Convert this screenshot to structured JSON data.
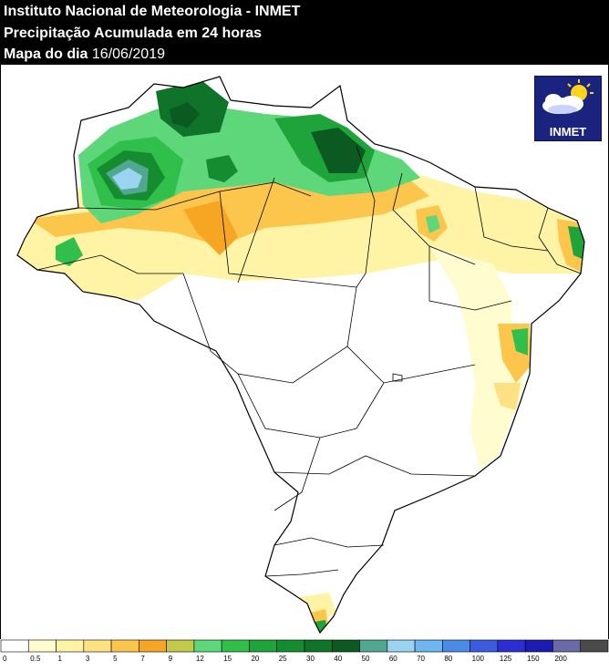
{
  "header": {
    "line1": "Instituto Nacional de Meteorologia - INMET",
    "line2": "Precipitação Acumulada em 24 horas",
    "line3_prefix": "Mapa do dia",
    "line3_date": "16/06/2019"
  },
  "logo": {
    "text": "INMET",
    "icon": "sun-cloud-icon"
  },
  "legend": {
    "classes": [
      {
        "label": "0",
        "color": "#ffffff"
      },
      {
        "label": "0.5",
        "color": "#fffccf"
      },
      {
        "label": "1",
        "color": "#fff3a6"
      },
      {
        "label": "3",
        "color": "#ffe184"
      },
      {
        "label": "5",
        "color": "#fcc64d"
      },
      {
        "label": "7",
        "color": "#f6a623"
      },
      {
        "label": "9",
        "color": "#c5c94a"
      },
      {
        "label": "12",
        "color": "#5ed67a"
      },
      {
        "label": "15",
        "color": "#2fbf4a"
      },
      {
        "label": "20",
        "color": "#1ea43a"
      },
      {
        "label": "25",
        "color": "#168c30"
      },
      {
        "label": "30",
        "color": "#0f7329"
      },
      {
        "label": "40",
        "color": "#0a5a22"
      },
      {
        "label": "50",
        "color": "#4fa88f"
      },
      {
        "label": "60",
        "color": "#9bd4f0"
      },
      {
        "label": "70",
        "color": "#6fb5f0"
      },
      {
        "label": "80",
        "color": "#4a8be8"
      },
      {
        "label": "100",
        "color": "#3a5de0"
      },
      {
        "label": "125",
        "color": "#2d2dd6"
      },
      {
        "label": "150",
        "color": "#1c1cb3"
      },
      {
        "label": "200",
        "color": "#6a6aa8"
      },
      {
        "label": "",
        "color": "#4a4a4a"
      }
    ]
  }
}
